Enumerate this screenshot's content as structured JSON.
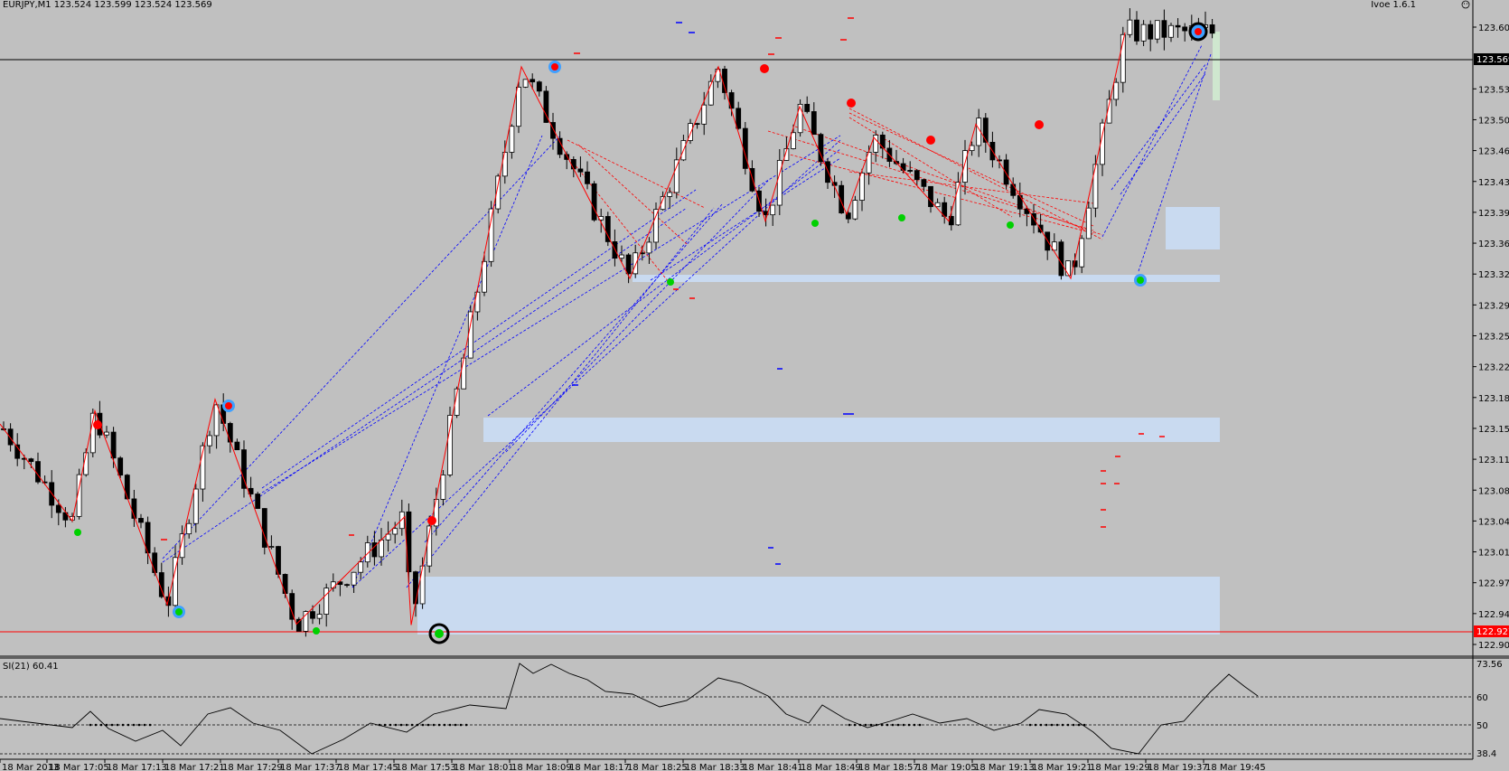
{
  "header": {
    "symbol_line": "EURJPY,M1  123.524 123.599 123.524 123.569",
    "indicator_name": "Ivoe 1.6.1"
  },
  "colors": {
    "background": "#c0c0c0",
    "bull_candle": "#ffffff",
    "bear_candle": "#000000",
    "zigzag": "#ff0000",
    "pattern_lines_red": "#ff0000",
    "pattern_lines_blue": "#0000ff",
    "supply_demand_zone": "#c9daf0",
    "current_zone": "#cfe7cf",
    "price_line": "#000000",
    "low_line": "#ff0000"
  },
  "price_axis": {
    "labels": [
      "123.605",
      "123.569",
      "123.535",
      "123.500",
      "123.465",
      "123.430",
      "123.395",
      "123.360",
      "123.325",
      "123.290",
      "123.255",
      "123.220",
      "123.185",
      "123.150",
      "123.115",
      "123.080",
      "123.045",
      "123.010",
      "122.975",
      "122.940",
      "122.927",
      "122.905"
    ],
    "current_price": "123.569",
    "low_price": "122.927"
  },
  "time_axis": {
    "labels": [
      "18 Mar 2013",
      "18 Mar 17:05",
      "18 Mar 17:13",
      "18 Mar 17:21",
      "18 Mar 17:29",
      "18 Mar 17:37",
      "18 Mar 17:45",
      "18 Mar 17:53",
      "18 Mar 18:01",
      "18 Mar 18:09",
      "18 Mar 18:17",
      "18 Mar 18:25",
      "18 Mar 18:33",
      "18 Mar 18:41",
      "18 Mar 18:49",
      "18 Mar 18:57",
      "18 Mar 19:05",
      "18 Mar 19:13",
      "18 Mar 19:21",
      "18 Mar 19:29",
      "18 Mar 19:37",
      "18 Mar 19:45"
    ]
  },
  "subwindow": {
    "title": "SI(21) 60.41",
    "levels": [
      "73.56",
      "60",
      "50",
      "38.4"
    ]
  },
  "chart_data": {
    "type": "candlestick",
    "symbol": "EURJPY",
    "timeframe": "M1",
    "last_bar": {
      "open": 123.524,
      "high": 123.599,
      "low": 123.524,
      "close": 123.569
    },
    "zigzag_points": [
      {
        "t": 0,
        "p": 123.155
      },
      {
        "t": 80,
        "p": 123.045
      },
      {
        "t": 105,
        "p": 123.17
      },
      {
        "t": 185,
        "p": 122.95
      },
      {
        "t": 238,
        "p": 123.183
      },
      {
        "t": 328,
        "p": 122.928
      },
      {
        "t": 448,
        "p": 123.05
      },
      {
        "t": 455,
        "p": 122.927
      },
      {
        "t": 577,
        "p": 123.56
      },
      {
        "t": 697,
        "p": 123.32
      },
      {
        "t": 795,
        "p": 123.56
      },
      {
        "t": 847,
        "p": 123.385
      },
      {
        "t": 885,
        "p": 123.515
      },
      {
        "t": 937,
        "p": 123.393
      },
      {
        "t": 967,
        "p": 123.48
      },
      {
        "t": 1050,
        "p": 123.385
      },
      {
        "t": 1080,
        "p": 123.495
      },
      {
        "t": 1185,
        "p": 123.32
      },
      {
        "t": 1245,
        "p": 123.599
      }
    ]
  }
}
